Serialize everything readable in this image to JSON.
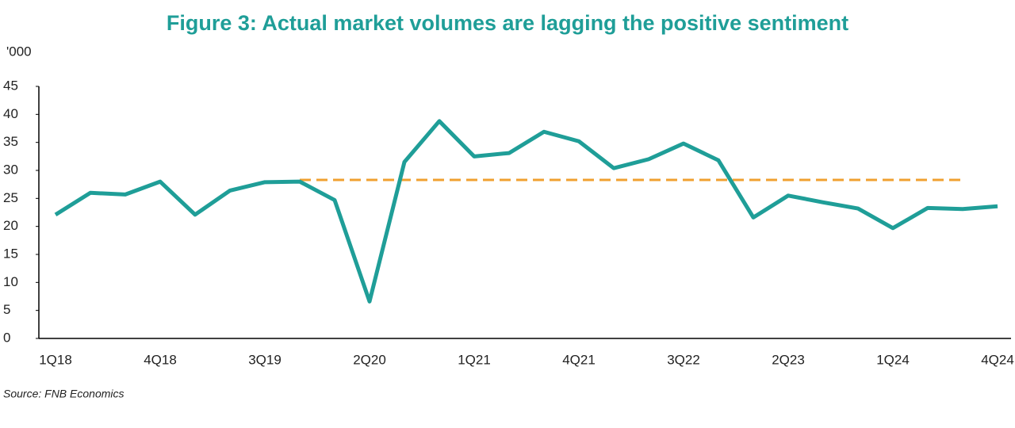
{
  "chart_data": {
    "type": "line",
    "title": "Figure 3: Actual market volumes are lagging the positive sentiment",
    "y_axis_label": "'000",
    "source": "Source: FNB Economics",
    "categories": [
      "1Q18",
      null,
      null,
      "4Q18",
      null,
      null,
      "3Q19",
      null,
      null,
      "2Q20",
      null,
      null,
      "1Q21",
      null,
      null,
      "4Q21",
      null,
      null,
      "3Q22",
      null,
      null,
      "2Q23",
      null,
      null,
      "1Q24",
      null,
      null,
      "4Q24"
    ],
    "series": [
      {
        "color": "#1f9e98",
        "dash": false,
        "values": [
          22.1,
          26.0,
          25.7,
          28.0,
          22.1,
          26.4,
          27.9,
          28.0,
          24.7,
          6.6,
          31.5,
          38.8,
          32.5,
          33.1,
          36.9,
          35.2,
          30.4,
          32.0,
          34.8,
          31.8,
          21.6,
          25.5,
          24.3,
          23.2,
          19.7,
          23.3,
          23.1,
          23.6
        ]
      },
      {
        "color": "#f0a030",
        "dash": true,
        "values": [
          null,
          null,
          null,
          null,
          null,
          null,
          null,
          28.3,
          28.3,
          28.3,
          28.3,
          28.3,
          28.3,
          28.3,
          28.3,
          28.3,
          28.3,
          28.3,
          28.3,
          28.3,
          28.3,
          28.3,
          28.3,
          28.3,
          28.3,
          28.3,
          28.3,
          null
        ]
      }
    ],
    "ylim": [
      0,
      45
    ],
    "yticks": [
      0,
      5,
      10,
      15,
      20,
      25,
      30,
      35,
      40,
      45
    ],
    "grid": false
  }
}
